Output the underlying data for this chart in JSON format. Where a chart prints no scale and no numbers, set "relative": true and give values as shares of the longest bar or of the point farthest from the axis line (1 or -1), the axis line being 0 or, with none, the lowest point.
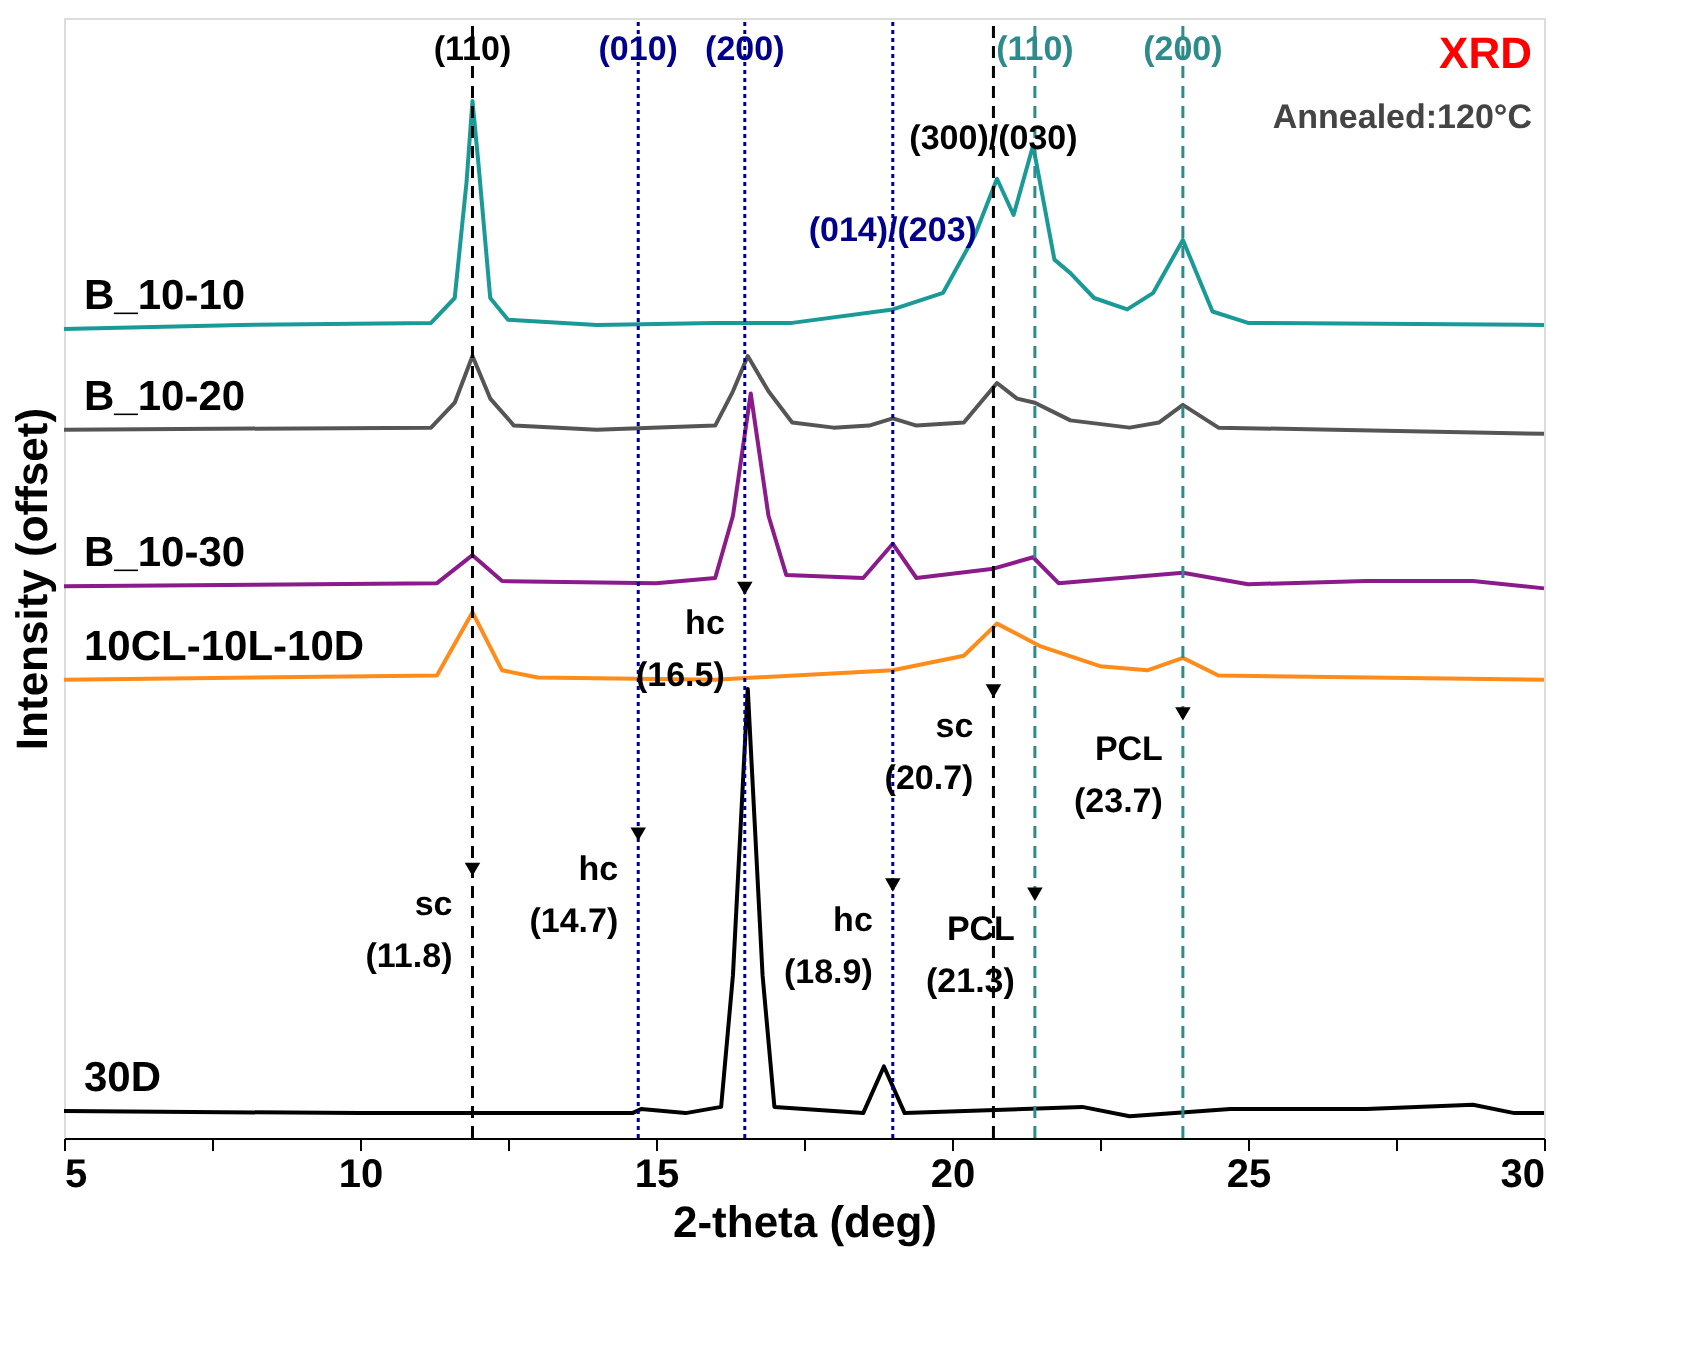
{
  "chart_data": {
    "type": "line",
    "relative": true,
    "xlabel": "2-theta (deg)",
    "ylabel": "Intensity (offset)",
    "xlim": [
      5,
      30
    ],
    "xticks": [
      5,
      {
        "value": 7.5,
        "label": null
      },
      10,
      {
        "value": 12.5,
        "label": null
      },
      15,
      {
        "value": 17.5,
        "label": null
      },
      20,
      {
        "value": 22.5,
        "label": null
      },
      25,
      {
        "value": 27.5,
        "label": null
      },
      30
    ],
    "grid": false,
    "legend": false,
    "marker": "none",
    "line_style": "solid",
    "series": [
      {
        "name": "B_10-10",
        "color": "#1a9a96",
        "x": [
          5,
          8,
          11.2,
          11.6,
          11.8,
          11.9,
          12.0,
          12.2,
          12.5,
          14,
          16,
          17.3,
          19.0,
          19.85,
          20.39,
          20.76,
          21.04,
          21.37,
          21.73,
          22.0,
          22.4,
          22.96,
          23.4,
          23.9,
          24.4,
          25.0,
          30
        ],
        "values": [
          0.78,
          0.784,
          0.786,
          0.81,
          0.922,
          1.0,
          0.94,
          0.81,
          0.789,
          0.784,
          0.786,
          0.786,
          0.799,
          0.815,
          0.871,
          0.925,
          0.89,
          0.957,
          0.847,
          0.834,
          0.81,
          0.799,
          0.815,
          0.866,
          0.797,
          0.786,
          0.784
        ]
      },
      {
        "name": "B_10-20",
        "color": "#555555",
        "x": [
          5,
          11.2,
          11.6,
          11.9,
          12.2,
          12.6,
          14,
          16.0,
          16.3,
          16.55,
          16.9,
          17.3,
          18.0,
          18.6,
          19.0,
          19.4,
          20.2,
          20.76,
          21.1,
          21.4,
          22,
          23.0,
          23.5,
          23.9,
          24.5,
          30
        ],
        "values": [
          0.683,
          0.685,
          0.709,
          0.754,
          0.713,
          0.687,
          0.683,
          0.687,
          0.72,
          0.754,
          0.72,
          0.69,
          0.685,
          0.687,
          0.694,
          0.687,
          0.69,
          0.728,
          0.713,
          0.709,
          0.692,
          0.685,
          0.69,
          0.707,
          0.685,
          0.679
        ]
      },
      {
        "name": "B_10-30",
        "color": "#8b1a8b",
        "x": [
          5,
          11.3,
          11.9,
          12.4,
          15,
          16.0,
          16.3,
          16.6,
          16.9,
          17.2,
          18.5,
          19.0,
          19.4,
          20.7,
          21.37,
          21.8,
          23.9,
          25,
          27,
          28.8,
          30
        ],
        "values": [
          0.532,
          0.535,
          0.562,
          0.537,
          0.535,
          0.54,
          0.6,
          0.718,
          0.6,
          0.543,
          0.54,
          0.573,
          0.54,
          0.549,
          0.56,
          0.535,
          0.545,
          0.534,
          0.537,
          0.537,
          0.53
        ]
      },
      {
        "name": "10CL-10L-10D",
        "color": "#ff8c1a",
        "x": [
          5,
          11.3,
          11.9,
          12.4,
          13,
          16,
          19.0,
          20.2,
          20.76,
          21.5,
          22.5,
          23.3,
          23.9,
          24.5,
          30
        ],
        "values": [
          0.442,
          0.446,
          0.507,
          0.451,
          0.444,
          0.442,
          0.451,
          0.465,
          0.496,
          0.474,
          0.455,
          0.451,
          0.463,
          0.446,
          0.442
        ]
      },
      {
        "name": "30D",
        "color": "#000000",
        "x": [
          5,
          10,
          14.6,
          14.75,
          15.5,
          16.1,
          16.3,
          16.55,
          16.8,
          17.0,
          18.5,
          18.85,
          19.2,
          22.2,
          23,
          24.7,
          27,
          28.8,
          29.5,
          30
        ],
        "values": [
          0.026,
          0.024,
          0.024,
          0.028,
          0.024,
          0.03,
          0.157,
          0.433,
          0.157,
          0.03,
          0.024,
          0.069,
          0.024,
          0.03,
          0.021,
          0.028,
          0.028,
          0.032,
          0.024,
          0.024
        ]
      }
    ],
    "ref_lines": [
      {
        "axis": "x",
        "value": 11.9,
        "color": "#000000",
        "line_style": "dashed"
      },
      {
        "axis": "x",
        "value": 14.7,
        "color": "#00008b",
        "line_style": "dotted"
      },
      {
        "axis": "x",
        "value": 16.5,
        "color": "#00008b",
        "line_style": "dotted"
      },
      {
        "axis": "x",
        "value": 21.4,
        "color": "#2e8b8b",
        "line_style": "dashed"
      },
      {
        "axis": "x",
        "value": 23.9,
        "color": "#2e8b8b",
        "line_style": "dashed"
      },
      {
        "axis": "x",
        "value": 20.7,
        "color": "#000000",
        "line_style": "dashed"
      },
      {
        "axis": "x",
        "value": 19.0,
        "color": "#00008b",
        "line_style": "dotted"
      }
    ],
    "annotations": [
      "XRD",
      "Annealed:120°C",
      {
        "text": "(110)",
        "x": 11.9,
        "y": 1.049
      },
      {
        "text": "(010)",
        "x": 14.7,
        "y": 1.049
      },
      {
        "text": "(200)",
        "x": 16.5,
        "y": 1.049
      },
      {
        "text": "(014)/(203)",
        "x": 19.0,
        "y": 0.875
      },
      {
        "text": "(300)/(030)",
        "x": 20.7,
        "y": 0.963
      },
      {
        "text": "(110)",
        "x": 21.4,
        "y": 1.049
      },
      {
        "text": "(200)",
        "x": 23.9,
        "y": 1.049
      },
      {
        "text": "sc\n(11.8)",
        "x": 11.9,
        "y": 0.259
      },
      {
        "text": "hc\n(14.7)",
        "x": 14.7,
        "y": 0.293
      },
      {
        "text": "hc\n(16.5)",
        "x": 16.5,
        "y": 0.53
      },
      {
        "text": "hc\n(18.9)",
        "x": 19.0,
        "y": 0.244
      },
      {
        "text": "sc\n(20.7)",
        "x": 20.7,
        "y": 0.431
      },
      {
        "text": "PCL\n(21.3)",
        "x": 21.4,
        "y": 0.235
      },
      {
        "text": "PCL\n(23.7)",
        "x": 23.9,
        "y": 0.409
      }
    ]
  }
}
